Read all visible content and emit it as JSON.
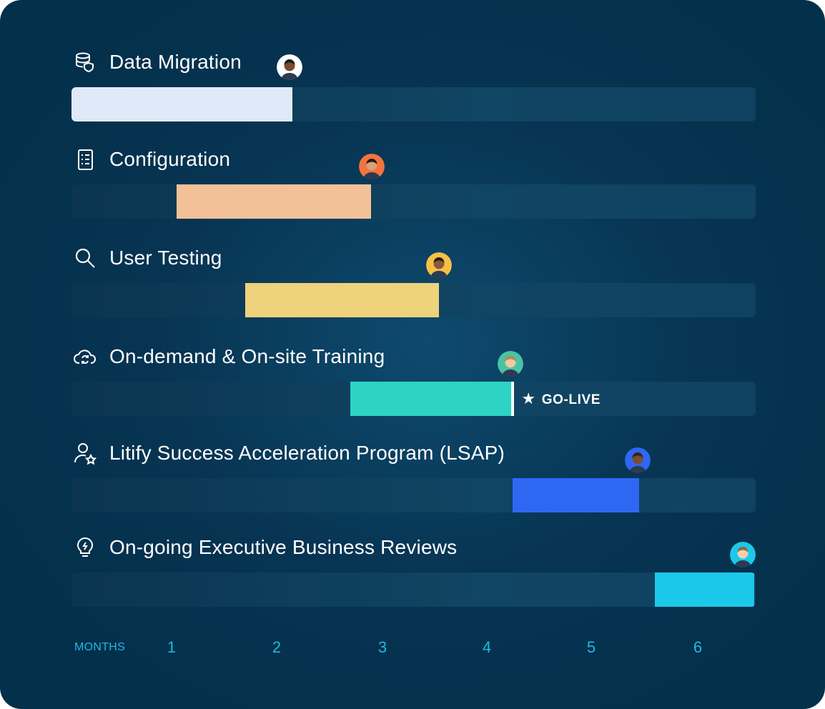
{
  "chart_data": {
    "type": "bar",
    "title": "",
    "xlabel": "MONTHS",
    "x_ticks": [
      "1",
      "2",
      "3",
      "4",
      "5",
      "6"
    ],
    "x_range": [
      0,
      6.5
    ],
    "grid": false,
    "tasks": [
      {
        "label": "Data Migration",
        "icon": "database-shield-icon",
        "start": 0,
        "end": 2.1,
        "color": "#dfe9f7",
        "avatar_bg": "#ffffff"
      },
      {
        "label": "Configuration",
        "icon": "checklist-icon",
        "start": 1.0,
        "end": 2.85,
        "color": "#f3c197",
        "avatar_bg": "#f3743d"
      },
      {
        "label": "User Testing",
        "icon": "search-icon",
        "start": 1.65,
        "end": 3.5,
        "color": "#eed27c",
        "avatar_bg": "#f6c046"
      },
      {
        "label": "On-demand & On-site Training",
        "icon": "cloud-sync-icon",
        "start": 2.65,
        "end": 4.2,
        "color": "#2dd4c4",
        "avatar_bg": "#49c3a3"
      },
      {
        "label": "Litify Success Acceleration Program (LSAP)",
        "icon": "user-star-icon",
        "start": 4.2,
        "end": 5.4,
        "color": "#2e68f2",
        "avatar_bg": "#2e68f2"
      },
      {
        "label": "On-going Executive Business Reviews",
        "icon": "lightbulb-icon",
        "start": 5.55,
        "end": 6.5,
        "color": "#1cc8ea",
        "avatar_bg": "#1cc8ea"
      }
    ],
    "milestone": {
      "label": "GO-LIVE",
      "at": 4.2
    }
  }
}
